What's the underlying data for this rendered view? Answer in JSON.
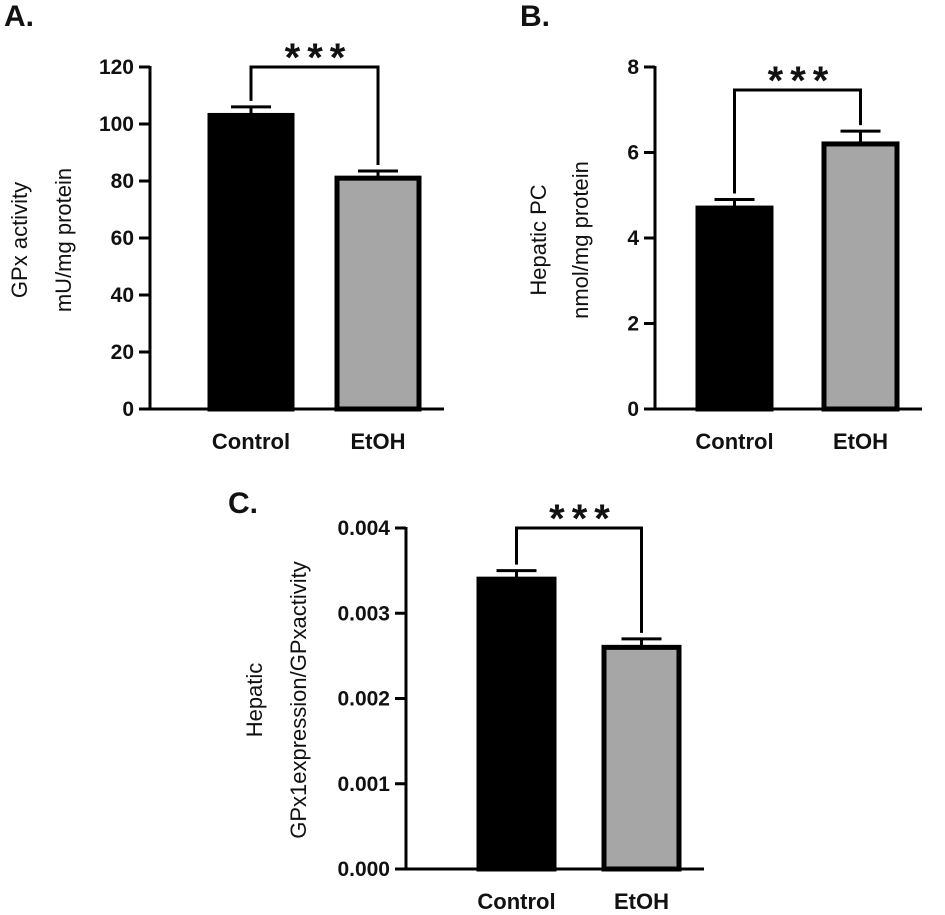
{
  "figure": {
    "panels": [
      {
        "letter": "A.",
        "ylabel_lines": [
          "GPx activity",
          "mU/mg protein"
        ],
        "significance": "***"
      },
      {
        "letter": "B.",
        "ylabel_lines": [
          "Hepatic PC",
          "nmol/mg protein"
        ],
        "significance": "***"
      },
      {
        "letter": "C.",
        "ylabel_lines": [
          "Hepatic",
          "GPx1expression/GPxactivity"
        ],
        "significance": "***"
      }
    ]
  },
  "colors": {
    "control": "#000000",
    "etoh": "#a6a6a6",
    "outline": "#000000"
  },
  "chart_data": [
    {
      "type": "bar",
      "title": "",
      "categories": [
        "Control",
        "EtOH"
      ],
      "values": [
        103,
        81
      ],
      "errors": [
        3,
        2.5
      ],
      "ylabel": "GPx activity mU/mg protein",
      "xlabel": "",
      "ylim": [
        0,
        120
      ],
      "yticks": [
        0,
        20,
        40,
        60,
        80,
        100,
        120
      ],
      "ytick_labels": [
        "0",
        "20",
        "40",
        "60",
        "80",
        "100",
        "120"
      ],
      "significance": "***",
      "grid": false
    },
    {
      "type": "bar",
      "title": "",
      "categories": [
        "Control",
        "EtOH"
      ],
      "values": [
        4.7,
        6.2
      ],
      "errors": [
        0.2,
        0.3
      ],
      "ylabel": "Hepatic PC nmol/mg protein",
      "xlabel": "",
      "ylim": [
        0,
        8
      ],
      "yticks": [
        0,
        2,
        4,
        6,
        8
      ],
      "ytick_labels": [
        "0",
        "2",
        "4",
        "6",
        "8"
      ],
      "significance": "***",
      "grid": false
    },
    {
      "type": "bar",
      "title": "",
      "categories": [
        "Control",
        "EtOH"
      ],
      "values": [
        0.0034,
        0.0026
      ],
      "errors": [
        0.0001,
        0.0001
      ],
      "ylabel": "Hepatic GPx1expression/GPxactivity",
      "xlabel": "",
      "ylim": [
        0,
        0.004
      ],
      "yticks": [
        0,
        0.001,
        0.002,
        0.003,
        0.004
      ],
      "ytick_labels": [
        "0.000",
        "0.001",
        "0.002",
        "0.003",
        "0.004"
      ],
      "significance": "***",
      "grid": false
    }
  ]
}
